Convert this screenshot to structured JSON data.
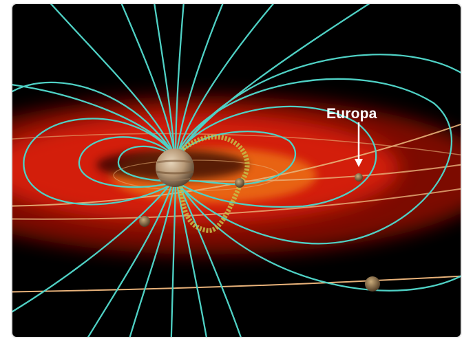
{
  "label": {
    "europa": "Europa"
  },
  "colors": {
    "space": "#000000",
    "torus_red": "#e3200f",
    "torus_orange": "#f07a18",
    "field_lines": "#4fd1c5",
    "orbit_paths": "#e8b27a",
    "flux_tube": "#c6c04a",
    "arrow": "#ffffff"
  },
  "icons": [
    "jupiter",
    "moon",
    "arrow-down"
  ]
}
